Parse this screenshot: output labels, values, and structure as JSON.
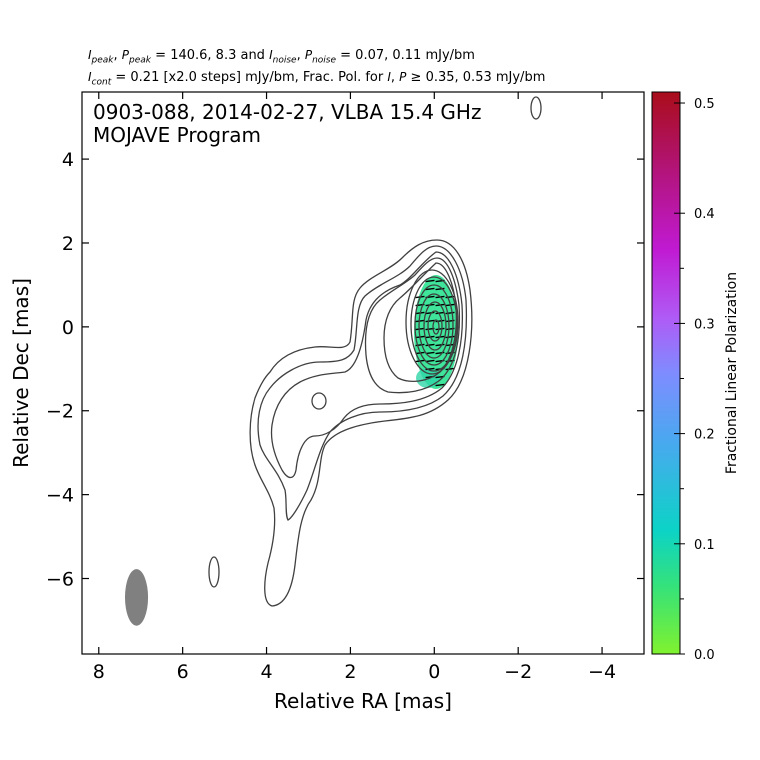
{
  "header": {
    "line1": "I_peak, P_peak = 140.6, 8.3 and I_noise, P_noise = 0.07, 0.11 mJy/bm",
    "line2": "I_cont = 0.21 [x2.0 steps] mJy/bm, Frac. Pol. for I, P ≥ 0.35, 0.53 mJy/bm"
  },
  "annotation": {
    "line1": "0903-088, 2014-02-27, VLBA 15.4 GHz",
    "line2": "MOJAVE Program"
  },
  "chart_data": {
    "type": "contour",
    "source": "0903-088",
    "date": "2014-02-27",
    "instrument": "VLBA 15.4 GHz",
    "program": "MOJAVE Program",
    "xlabel": "Relative RA [mas]",
    "ylabel": "Relative Dec [mas]",
    "xlim": [
      8.4,
      -5.0
    ],
    "ylim": [
      -7.8,
      5.6
    ],
    "x_ticks": [
      8,
      6,
      4,
      2,
      0,
      -2,
      -4
    ],
    "x_tick_labels": [
      "8",
      "6",
      "4",
      "2",
      "0",
      "−2",
      "−4"
    ],
    "y_ticks": [
      4,
      2,
      0,
      -2,
      -4,
      -6
    ],
    "y_tick_labels": [
      "4",
      "2",
      "0",
      "−2",
      "−4",
      "−6"
    ],
    "I_peak_mJy_bm": 140.6,
    "P_peak_mJy_bm": 8.3,
    "I_noise_mJy_bm": 0.07,
    "P_noise_mJy_bm": 0.11,
    "I_cont_base_mJy_bm": 0.21,
    "contour_step_factor": 2.0,
    "fracpol_I_threshold_mJy_bm": 0.35,
    "fracpol_P_threshold_mJy_bm": 0.53,
    "core": {
      "ra": 0.0,
      "dec": 0.0
    },
    "beam": {
      "ra": 7.1,
      "dec": -6.45,
      "major_mas": 1.35,
      "minor_mas": 0.55,
      "pa_deg": 0
    },
    "polarization_region": {
      "ra": 0.0,
      "dec": -0.15,
      "fractional_pol": 0.065
    },
    "colorbar": {
      "label": "Fractional Linear Polarization",
      "min": 0.0,
      "max": 0.51,
      "ticks": [
        0.0,
        0.1,
        0.2,
        0.3,
        0.4,
        0.5
      ],
      "tick_labels": [
        "0.0",
        "0.1",
        "0.2",
        "0.3",
        "0.4",
        "0.5"
      ],
      "colors": [
        "#80f22e",
        "#35e27a",
        "#0cd3c6",
        "#4aa8f0",
        "#7f8cff",
        "#b05af5",
        "#c01ad2",
        "#b2147a",
        "#aa0d1a"
      ]
    },
    "colors": {
      "contour": "#404040",
      "beam": "#808080",
      "evpa": "#000000"
    }
  }
}
